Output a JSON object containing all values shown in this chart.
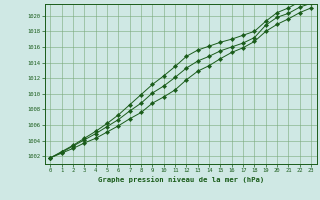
{
  "title": "Graphe pression niveau de la mer (hPa)",
  "background_color": "#cfe8e4",
  "plot_bg_color": "#cfe8e4",
  "grid_color": "#7aaa7a",
  "line_color": "#1a5c1a",
  "marker_color": "#1a5c1a",
  "xlim": [
    -0.5,
    23.5
  ],
  "ylim": [
    1001.0,
    1021.5
  ],
  "yticks": [
    1002,
    1004,
    1006,
    1008,
    1010,
    1012,
    1014,
    1016,
    1018,
    1020
  ],
  "xticks": [
    0,
    1,
    2,
    3,
    4,
    5,
    6,
    7,
    8,
    9,
    10,
    11,
    12,
    13,
    14,
    15,
    16,
    17,
    18,
    19,
    20,
    21,
    22,
    23
  ],
  "series_low": [
    1001.8,
    1002.4,
    1003.0,
    1003.7,
    1004.3,
    1005.1,
    1005.9,
    1006.8,
    1007.6,
    1008.8,
    1009.6,
    1010.5,
    1011.8,
    1012.9,
    1013.6,
    1014.5,
    1015.3,
    1015.9,
    1016.7,
    1018.0,
    1018.9,
    1019.6,
    1020.4,
    1021.0
  ],
  "series_mid": [
    1001.8,
    1002.5,
    1003.3,
    1004.1,
    1004.9,
    1005.8,
    1006.7,
    1007.8,
    1008.8,
    1010.1,
    1011.0,
    1012.1,
    1013.3,
    1014.2,
    1014.8,
    1015.5,
    1016.0,
    1016.5,
    1017.2,
    1018.8,
    1019.8,
    1020.3,
    1021.1,
    1021.6
  ],
  "series_high": [
    1001.8,
    1002.6,
    1003.4,
    1004.3,
    1005.2,
    1006.2,
    1007.3,
    1008.6,
    1009.9,
    1011.2,
    1012.3,
    1013.5,
    1014.8,
    1015.6,
    1016.1,
    1016.6,
    1017.0,
    1017.5,
    1018.0,
    1019.3,
    1020.4,
    1021.0,
    1021.8,
    1022.3
  ]
}
